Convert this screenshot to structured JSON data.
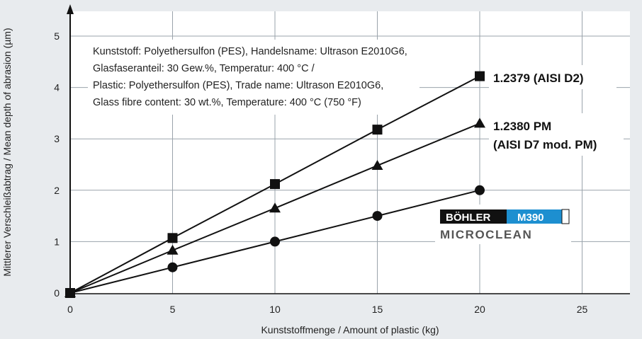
{
  "chart_data": {
    "type": "line",
    "xlabel": "Kunststoffmenge / Amount of plastic (kg)",
    "ylabel": "Mittlerer Verschleißabtrag / Mean depth of abrasion (µm)",
    "xlim": [
      0,
      27.5
    ],
    "ylim": [
      0,
      5.5
    ],
    "x_ticks": [
      0,
      5,
      10,
      15,
      20,
      25
    ],
    "y_ticks": [
      0,
      1,
      2,
      3,
      4,
      5
    ],
    "grid": true,
    "annotation_lines": [
      "Kunststoff: Polyethersulfon (PES), Handelsname: Ultrason E2010G6,",
      "Glasfaseranteil: 30 Gew.%, Temperatur: 400 °C /",
      "Plastic: Polyethersulfon (PES), Trade name: Ultrason E2010G6,",
      "Glass fibre content: 30 wt.%, Temperature: 400 °C (750 °F)"
    ],
    "series": [
      {
        "key": "d2",
        "name_lines": [
          "1.2379 (AISI D2)"
        ],
        "marker": "square",
        "x": [
          0,
          5,
          10,
          15,
          20
        ],
        "y": [
          0,
          1.07,
          2.12,
          3.18,
          4.22
        ]
      },
      {
        "key": "d7",
        "name_lines": [
          "1.2380 PM",
          "(AISI D7 mod. PM)"
        ],
        "marker": "triangle",
        "x": [
          0,
          5,
          10,
          15,
          20
        ],
        "y": [
          0,
          0.83,
          1.65,
          2.48,
          3.3
        ]
      },
      {
        "key": "m390",
        "name_lines": [],
        "marker": "circle",
        "x": [
          0,
          5,
          10,
          15,
          20
        ],
        "y": [
          0,
          0.5,
          1.0,
          1.5,
          2.0
        ]
      }
    ],
    "logo": {
      "top_left": "BÖHLER",
      "top_right": "M390",
      "bottom": "MICROCLEAN",
      "accent_color": "#1d8fd0"
    }
  }
}
